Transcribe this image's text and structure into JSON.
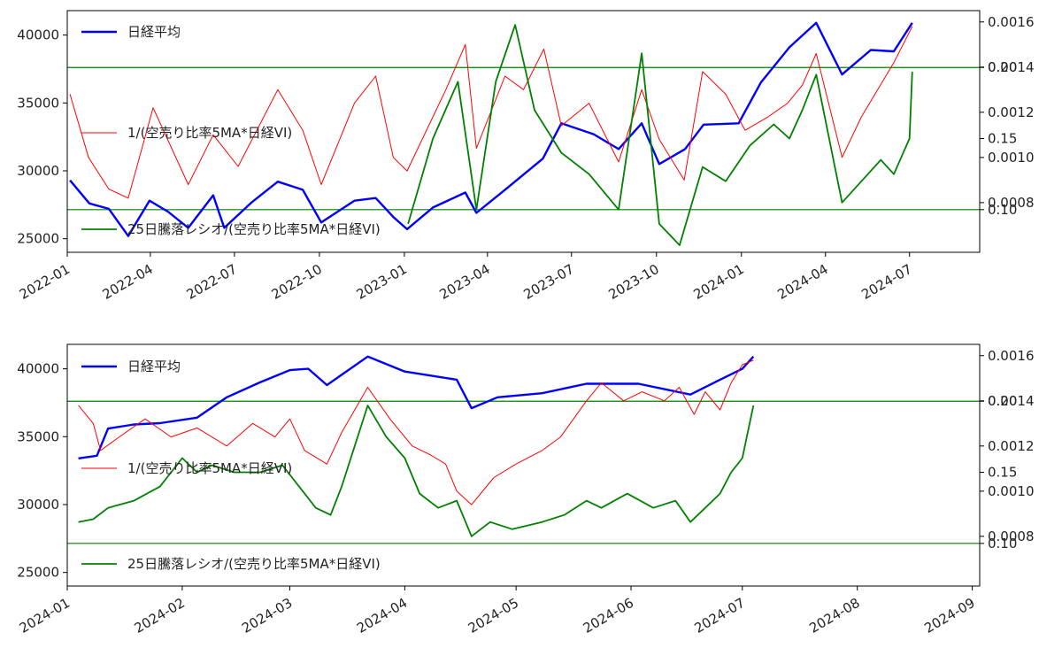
{
  "colors": {
    "nikkei": "#0000ff",
    "inverse": "#ff0000",
    "ratio": "#008000",
    "hline": "#008000"
  },
  "legend": {
    "nikkei": "日経平均",
    "inverse": "1/(空売り比率5MA*日経VI)",
    "ratio": "25日騰落レシオ/(空売り比率5MA*日経VI)"
  },
  "chart_data": [
    {
      "type": "line",
      "x_range": [
        "2022-01-01",
        "2024-09-15"
      ],
      "x_ticks": [
        "2022-01",
        "2022-04",
        "2022-07",
        "2022-10",
        "2023-01",
        "2023-04",
        "2023-07",
        "2023-10",
        "2024-01",
        "2024-04",
        "2024-07"
      ],
      "left_ylim": [
        24000,
        41800
      ],
      "left_ticks": [
        25000,
        30000,
        35000,
        40000
      ],
      "right_ylim_inverse": [
        0.00058,
        0.00165
      ],
      "right_ticks_inverse": [
        0.0008,
        0.001,
        0.0012,
        0.0014,
        0.0016
      ],
      "right_ylim_ratio": [
        0.07,
        0.24
      ],
      "right_ticks_ratio": [
        0.1,
        0.15,
        0.2
      ],
      "hlines_ratio": [
        0.1,
        0.2
      ],
      "series": [
        {
          "name": "日経平均",
          "axis": "left",
          "points": [
            [
              "2022-01-04",
              29300
            ],
            [
              "2022-01-25",
              27600
            ],
            [
              "2022-02-15",
              27200
            ],
            [
              "2022-03-08",
              25200
            ],
            [
              "2022-03-31",
              27800
            ],
            [
              "2022-04-20",
              27000
            ],
            [
              "2022-05-12",
              25800
            ],
            [
              "2022-06-08",
              28200
            ],
            [
              "2022-06-20",
              25800
            ],
            [
              "2022-07-20",
              27700
            ],
            [
              "2022-08-17",
              29200
            ],
            [
              "2022-09-13",
              28600
            ],
            [
              "2022-10-03",
              26200
            ],
            [
              "2022-11-08",
              27800
            ],
            [
              "2022-12-01",
              28000
            ],
            [
              "2022-12-20",
              26600
            ],
            [
              "2023-01-04",
              25700
            ],
            [
              "2023-02-01",
              27300
            ],
            [
              "2023-03-08",
              28400
            ],
            [
              "2023-03-20",
              26900
            ],
            [
              "2023-04-20",
              28600
            ],
            [
              "2023-05-31",
              30900
            ],
            [
              "2023-06-20",
              33500
            ],
            [
              "2023-07-25",
              32700
            ],
            [
              "2023-08-21",
              31600
            ],
            [
              "2023-09-15",
              33500
            ],
            [
              "2023-10-04",
              30500
            ],
            [
              "2023-11-01",
              31600
            ],
            [
              "2023-11-21",
              33400
            ],
            [
              "2023-12-29",
              33500
            ],
            [
              "2024-01-22",
              36500
            ],
            [
              "2024-02-22",
              39100
            ],
            [
              "2024-03-22",
              40900
            ],
            [
              "2024-04-19",
              37100
            ],
            [
              "2024-05-20",
              38900
            ],
            [
              "2024-06-14",
              38800
            ],
            [
              "2024-07-04",
              40900
            ]
          ]
        },
        {
          "name": "1/(空売り比率5MA*日経VI)",
          "axis": "right",
          "points": [
            [
              "2022-01-04",
              0.00128
            ],
            [
              "2022-01-24",
              0.001
            ],
            [
              "2022-02-15",
              0.00086
            ],
            [
              "2022-03-08",
              0.00082
            ],
            [
              "2022-04-04",
              0.00122
            ],
            [
              "2022-05-12",
              0.00088
            ],
            [
              "2022-06-08",
              0.0011
            ],
            [
              "2022-07-05",
              0.00096
            ],
            [
              "2022-08-17",
              0.0013
            ],
            [
              "2022-09-13",
              0.00112
            ],
            [
              "2022-10-03",
              0.00088
            ],
            [
              "2022-11-08",
              0.00124
            ],
            [
              "2022-12-01",
              0.00136
            ],
            [
              "2022-12-20",
              0.001
            ],
            [
              "2023-01-04",
              0.00094
            ],
            [
              "2023-02-15",
              0.0013
            ],
            [
              "2023-03-08",
              0.0015
            ],
            [
              "2023-03-20",
              0.00104
            ],
            [
              "2023-04-20",
              0.00136
            ],
            [
              "2023-05-10",
              0.0013
            ],
            [
              "2023-06-01",
              0.00148
            ],
            [
              "2023-06-20",
              0.00114
            ],
            [
              "2023-07-20",
              0.00124
            ],
            [
              "2023-08-21",
              0.00098
            ],
            [
              "2023-09-15",
              0.0013
            ],
            [
              "2023-10-04",
              0.00108
            ],
            [
              "2023-10-31",
              0.0009
            ],
            [
              "2023-11-20",
              0.00138
            ],
            [
              "2023-12-15",
              0.00128
            ],
            [
              "2024-01-05",
              0.00112
            ],
            [
              "2024-01-30",
              0.00118
            ],
            [
              "2024-02-20",
              0.00124
            ],
            [
              "2024-03-07",
              0.00132
            ],
            [
              "2024-03-22",
              0.00146
            ],
            [
              "2024-04-19",
              0.001
            ],
            [
              "2024-05-10",
              0.00118
            ],
            [
              "2024-06-14",
              0.00142
            ],
            [
              "2024-07-04",
              0.00158
            ]
          ]
        },
        {
          "name": "25日騰落レシオ/(空売り比率5MA*日経VI)",
          "axis": "right",
          "points": [
            [
              "2023-01-05",
              0.09
            ],
            [
              "2023-02-01",
              0.15
            ],
            [
              "2023-02-28",
              0.19
            ],
            [
              "2023-03-20",
              0.1
            ],
            [
              "2023-04-10",
              0.19
            ],
            [
              "2023-05-01",
              0.23
            ],
            [
              "2023-05-22",
              0.17
            ],
            [
              "2023-06-20",
              0.14
            ],
            [
              "2023-07-20",
              0.125
            ],
            [
              "2023-08-21",
              0.1
            ],
            [
              "2023-09-15",
              0.21
            ],
            [
              "2023-10-04",
              0.09
            ],
            [
              "2023-10-26",
              0.075
            ],
            [
              "2023-11-20",
              0.13
            ],
            [
              "2023-12-15",
              0.12
            ],
            [
              "2024-01-10",
              0.145
            ],
            [
              "2024-02-05",
              0.16
            ],
            [
              "2024-02-22",
              0.15
            ],
            [
              "2024-03-07",
              0.17
            ],
            [
              "2024-03-22",
              0.195
            ],
            [
              "2024-04-19",
              0.105
            ],
            [
              "2024-05-10",
              0.12
            ],
            [
              "2024-05-31",
              0.135
            ],
            [
              "2024-06-14",
              0.125
            ],
            [
              "2024-07-01",
              0.15
            ],
            [
              "2024-07-04",
              0.197
            ]
          ]
        }
      ]
    },
    {
      "type": "line",
      "x_range": [
        "2024-01-01",
        "2024-09-03"
      ],
      "x_ticks": [
        "2024-01",
        "2024-02",
        "2024-03",
        "2024-04",
        "2024-05",
        "2024-06",
        "2024-07",
        "2024-08",
        "2024-09"
      ],
      "left_ylim": [
        24000,
        41800
      ],
      "left_ticks": [
        25000,
        30000,
        35000,
        40000
      ],
      "right_ylim_inverse": [
        0.00058,
        0.00165
      ],
      "right_ticks_inverse": [
        0.0008,
        0.001,
        0.0012,
        0.0014,
        0.0016
      ],
      "right_ylim_ratio": [
        0.07,
        0.24
      ],
      "right_ticks_ratio": [
        0.1,
        0.15,
        0.2
      ],
      "hlines_ratio": [
        0.1,
        0.2
      ],
      "series": [
        {
          "name": "日経平均",
          "axis": "left",
          "points": [
            [
              "2024-01-04",
              33400
            ],
            [
              "2024-01-09",
              33600
            ],
            [
              "2024-01-12",
              35600
            ],
            [
              "2024-01-19",
              35900
            ],
            [
              "2024-01-26",
              36000
            ],
            [
              "2024-02-05",
              36400
            ],
            [
              "2024-02-13",
              37900
            ],
            [
              "2024-02-22",
              39000
            ],
            [
              "2024-03-01",
              39900
            ],
            [
              "2024-03-06",
              40000
            ],
            [
              "2024-03-11",
              38800
            ],
            [
              "2024-03-22",
              40900
            ],
            [
              "2024-04-01",
              39800
            ],
            [
              "2024-04-15",
              39200
            ],
            [
              "2024-04-19",
              37100
            ],
            [
              "2024-04-26",
              37900
            ],
            [
              "2024-05-08",
              38200
            ],
            [
              "2024-05-20",
              38900
            ],
            [
              "2024-06-03",
              38900
            ],
            [
              "2024-06-17",
              38100
            ],
            [
              "2024-06-25",
              39200
            ],
            [
              "2024-07-01",
              40000
            ],
            [
              "2024-07-04",
              40900
            ]
          ]
        },
        {
          "name": "1/(空売り比率5MA*日経VI)",
          "axis": "right",
          "points": [
            [
              "2024-01-04",
              0.00138
            ],
            [
              "2024-01-08",
              0.0013
            ],
            [
              "2024-01-10",
              0.00118
            ],
            [
              "2024-01-15",
              0.00124
            ],
            [
              "2024-01-22",
              0.00132
            ],
            [
              "2024-01-29",
              0.00124
            ],
            [
              "2024-02-05",
              0.00128
            ],
            [
              "2024-02-13",
              0.0012
            ],
            [
              "2024-02-20",
              0.0013
            ],
            [
              "2024-02-26",
              0.00124
            ],
            [
              "2024-03-01",
              0.00132
            ],
            [
              "2024-03-05",
              0.00118
            ],
            [
              "2024-03-11",
              0.00112
            ],
            [
              "2024-03-15",
              0.00126
            ],
            [
              "2024-03-22",
              0.00146
            ],
            [
              "2024-03-28",
              0.00132
            ],
            [
              "2024-04-03",
              0.0012
            ],
            [
              "2024-04-08",
              0.00116
            ],
            [
              "2024-04-12",
              0.00112
            ],
            [
              "2024-04-15",
              0.001
            ],
            [
              "2024-04-19",
              0.00094
            ],
            [
              "2024-04-25",
              0.00106
            ],
            [
              "2024-05-01",
              0.00112
            ],
            [
              "2024-05-08",
              0.00118
            ],
            [
              "2024-05-13",
              0.00124
            ],
            [
              "2024-05-20",
              0.0014
            ],
            [
              "2024-05-24",
              0.00148
            ],
            [
              "2024-05-30",
              0.0014
            ],
            [
              "2024-06-04",
              0.00144
            ],
            [
              "2024-06-10",
              0.0014
            ],
            [
              "2024-06-14",
              0.00146
            ],
            [
              "2024-06-18",
              0.00134
            ],
            [
              "2024-06-21",
              0.00144
            ],
            [
              "2024-06-25",
              0.00136
            ],
            [
              "2024-06-28",
              0.00148
            ],
            [
              "2024-07-01",
              0.00156
            ],
            [
              "2024-07-04",
              0.00158
            ]
          ]
        },
        {
          "name": "25日騰落レシオ/(空売り比率5MA*日経VI)",
          "axis": "right",
          "points": [
            [
              "2024-01-04",
              0.115
            ],
            [
              "2024-01-08",
              0.117
            ],
            [
              "2024-01-12",
              0.125
            ],
            [
              "2024-01-19",
              0.13
            ],
            [
              "2024-01-26",
              0.14
            ],
            [
              "2024-02-01",
              0.16
            ],
            [
              "2024-02-05",
              0.15
            ],
            [
              "2024-02-09",
              0.155
            ],
            [
              "2024-02-15",
              0.15
            ],
            [
              "2024-02-22",
              0.15
            ],
            [
              "2024-02-28",
              0.155
            ],
            [
              "2024-03-05",
              0.135
            ],
            [
              "2024-03-08",
              0.125
            ],
            [
              "2024-03-12",
              0.12
            ],
            [
              "2024-03-15",
              0.14
            ],
            [
              "2024-03-22",
              0.197
            ],
            [
              "2024-03-27",
              0.175
            ],
            [
              "2024-04-01",
              0.16
            ],
            [
              "2024-04-05",
              0.135
            ],
            [
              "2024-04-10",
              0.125
            ],
            [
              "2024-04-15",
              0.13
            ],
            [
              "2024-04-19",
              0.105
            ],
            [
              "2024-04-24",
              0.115
            ],
            [
              "2024-04-30",
              0.11
            ],
            [
              "2024-05-08",
              0.115
            ],
            [
              "2024-05-14",
              0.12
            ],
            [
              "2024-05-20",
              0.13
            ],
            [
              "2024-05-24",
              0.125
            ],
            [
              "2024-05-31",
              0.135
            ],
            [
              "2024-06-07",
              0.125
            ],
            [
              "2024-06-13",
              0.13
            ],
            [
              "2024-06-17",
              0.115
            ],
            [
              "2024-06-21",
              0.125
            ],
            [
              "2024-06-25",
              0.135
            ],
            [
              "2024-06-28",
              0.15
            ],
            [
              "2024-07-01",
              0.16
            ],
            [
              "2024-07-04",
              0.197
            ]
          ]
        }
      ]
    }
  ]
}
